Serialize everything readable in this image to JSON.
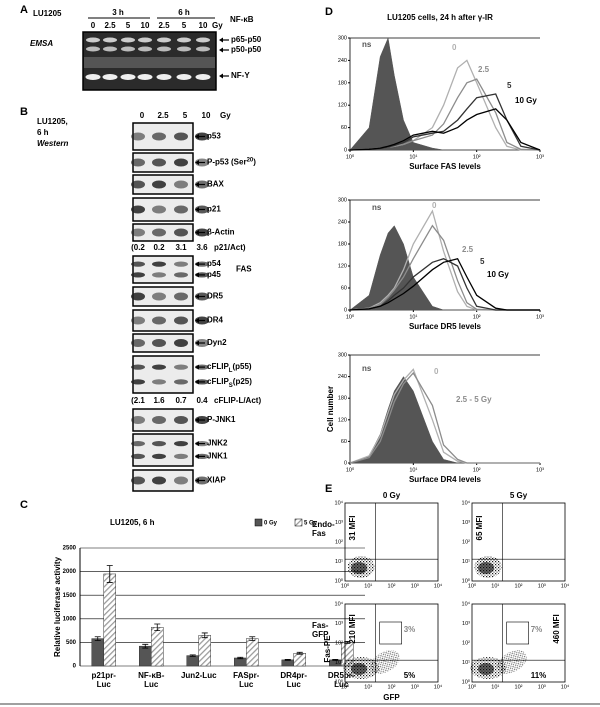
{
  "panel_a": {
    "label": "A",
    "cell_line": "LU1205",
    "times": [
      "3 h",
      "6 h"
    ],
    "doses": [
      "0",
      "2.5",
      "5",
      "10",
      "2.5",
      "5",
      "10"
    ],
    "dose_unit": "Gy",
    "assay": "EMSA",
    "band_header": "NF-κB",
    "bands": [
      "p65-p50",
      "p50-p50",
      "NF-Y"
    ]
  },
  "panel_b": {
    "label": "B",
    "cell_line": "LU1205,",
    "time": "6 h",
    "method": "Western",
    "doses": [
      "0",
      "2.5",
      "5",
      "10"
    ],
    "dose_unit": "Gy",
    "rows": [
      {
        "bands": [
          "p53"
        ]
      },
      {
        "bands": [
          {
            "text": "P-p53 (Ser",
            "sup": "20",
            "rest": ")"
          }
        ]
      },
      {
        "bands": [
          "BAX"
        ]
      },
      {
        "bands": [
          "p21"
        ]
      },
      {
        "bands": [
          "β-Actin"
        ]
      },
      {
        "ratios": [
          "(0.2",
          "0.2",
          "3.1",
          "3.6"
        ],
        "unit": "p21/Act)"
      },
      {
        "bands": [
          "p54",
          "p45"
        ],
        "group": "FAS"
      },
      {
        "bands": [
          "DR5"
        ]
      },
      {
        "bands": [
          "DR4"
        ]
      },
      {
        "bands": [
          "Dyn2"
        ]
      },
      {
        "bands": [
          {
            "text": "cFLIP",
            "sub": "L",
            "rest": "(p55)"
          },
          {
            "text": "cFLIP",
            "sub": "S",
            "rest": "(p25)"
          }
        ]
      },
      {
        "ratios": [
          "(2.1",
          "1.6",
          "0.7",
          "0.4"
        ],
        "unit": "cFLIP-L/Act)"
      },
      {
        "bands": [
          "P-JNK1"
        ]
      },
      {
        "bands": [
          "JNK2",
          "JNK1"
        ]
      },
      {
        "bands": [
          "XIAP"
        ]
      }
    ]
  },
  "chart_data": [
    {
      "type": "bar",
      "panel_label": "C",
      "title": "LU1205, 6 h",
      "ylabel": "Relative luciferase activity",
      "categories": [
        "p21pr-\nLuc",
        "NF-κB-\nLuc",
        "Jun2-Luc",
        "FASpr-\nLuc",
        "DR4pr-\nLuc",
        "DR5pr-\nLuc"
      ],
      "series": [
        {
          "name": "0 Gy",
          "color": "#555555",
          "values": [
            580,
            420,
            220,
            170,
            130,
            130
          ],
          "errors": [
            40,
            40,
            15,
            15,
            10,
            10
          ]
        },
        {
          "name": "5 Gy",
          "color": "#999999",
          "hatch": true,
          "values": [
            1950,
            820,
            650,
            580,
            270,
            500
          ],
          "errors": [
            180,
            70,
            50,
            40,
            20,
            20
          ]
        }
      ],
      "ylim": [
        0,
        2500
      ],
      "yticks": [
        0,
        500,
        1000,
        1500,
        2000,
        2500
      ],
      "grid": true
    },
    {
      "type": "line",
      "panel_label": "D",
      "title": "LU1205 cells, 24 h after γ-IR",
      "xlabel": "Surface FAS levels",
      "log_x": true,
      "x": [
        1,
        2,
        3,
        4,
        5,
        7,
        10,
        20,
        30,
        50,
        70,
        100,
        200,
        300,
        500,
        1000
      ],
      "xlim": [
        1,
        1000
      ],
      "xticks": [
        {
          "value": 1,
          "label": "10⁰"
        },
        {
          "value": 10,
          "label": "10¹"
        },
        {
          "value": 100,
          "label": "10²"
        },
        {
          "value": 1000,
          "label": "10³"
        }
      ],
      "ylim": [
        0,
        300
      ],
      "yticks": [
        0,
        60,
        120,
        180,
        240,
        300
      ],
      "series": [
        {
          "name": "ns",
          "color": "#555555",
          "filled": true,
          "values": [
            0,
            60,
            250,
            300,
            200,
            80,
            20,
            5,
            0,
            0,
            0,
            0,
            0,
            0,
            0,
            0
          ]
        },
        {
          "name": "0",
          "color": "#b0b0b0",
          "values": [
            0,
            2,
            5,
            8,
            10,
            15,
            25,
            60,
            120,
            220,
            240,
            180,
            60,
            10,
            0,
            0
          ]
        },
        {
          "name": "2.5",
          "color": "#8c8c8c",
          "values": [
            0,
            2,
            5,
            8,
            10,
            15,
            25,
            40,
            70,
            140,
            180,
            190,
            100,
            20,
            2,
            0
          ]
        },
        {
          "name": "5",
          "color": "#333333",
          "values": [
            0,
            2,
            4,
            8,
            12,
            20,
            35,
            45,
            50,
            80,
            110,
            140,
            150,
            80,
            10,
            0
          ]
        },
        {
          "name": "10 Gy",
          "color": "#000000",
          "values": [
            0,
            2,
            5,
            10,
            15,
            25,
            40,
            50,
            45,
            60,
            80,
            95,
            110,
            80,
            20,
            0
          ]
        }
      ]
    },
    {
      "type": "line",
      "xlabel": "Surface DR5 levels",
      "log_x": true,
      "x": [
        1,
        2,
        3,
        4,
        5,
        7,
        10,
        20,
        30,
        50,
        70,
        100,
        200,
        300,
        500,
        1000
      ],
      "xlim": [
        1,
        1000
      ],
      "xticks": [
        {
          "value": 1,
          "label": "10⁰"
        },
        {
          "value": 10,
          "label": "10¹"
        },
        {
          "value": 100,
          "label": "10²"
        },
        {
          "value": 1000,
          "label": "10³"
        }
      ],
      "ylim": [
        0,
        300
      ],
      "yticks": [
        0,
        60,
        120,
        180,
        240,
        300
      ],
      "series": [
        {
          "name": "ns",
          "color": "#555555",
          "filled": true,
          "values": [
            0,
            40,
            150,
            210,
            230,
            180,
            90,
            10,
            0,
            0,
            0,
            0,
            0,
            0,
            0,
            0
          ]
        },
        {
          "name": "0",
          "color": "#b0b0b0",
          "values": [
            0,
            5,
            20,
            40,
            60,
            110,
            180,
            270,
            160,
            50,
            10,
            0,
            0,
            0,
            0,
            0
          ]
        },
        {
          "name": "2.5",
          "color": "#8c8c8c",
          "values": [
            0,
            5,
            15,
            35,
            55,
            90,
            140,
            230,
            190,
            80,
            20,
            2,
            0,
            0,
            0,
            0
          ]
        },
        {
          "name": "5",
          "color": "#333333",
          "values": [
            0,
            3,
            10,
            25,
            40,
            60,
            90,
            130,
            140,
            120,
            60,
            10,
            0,
            0,
            0,
            0
          ]
        },
        {
          "name": "10 Gy",
          "color": "#000000",
          "values": [
            0,
            3,
            10,
            20,
            30,
            45,
            65,
            110,
            130,
            140,
            90,
            40,
            5,
            0,
            0,
            0
          ]
        }
      ]
    },
    {
      "type": "line",
      "xlabel": "Surface DR4 levels",
      "ylabel": "Cell number",
      "log_x": true,
      "x": [
        1,
        2,
        3,
        4,
        5,
        7,
        10,
        20,
        30,
        50,
        70,
        100,
        200,
        300,
        500,
        1000
      ],
      "xlim": [
        1,
        1000
      ],
      "xticks": [
        {
          "value": 1,
          "label": "10⁰"
        },
        {
          "value": 10,
          "label": "10¹"
        },
        {
          "value": 100,
          "label": "10²"
        },
        {
          "value": 1000,
          "label": "10³"
        }
      ],
      "ylim": [
        0,
        300
      ],
      "yticks": [
        0,
        60,
        120,
        180,
        240,
        300
      ],
      "series": [
        {
          "name": "ns",
          "color": "#555555",
          "filled": true,
          "values": [
            0,
            20,
            80,
            150,
            200,
            240,
            200,
            60,
            10,
            0,
            0,
            0,
            0,
            0,
            0,
            0
          ]
        },
        {
          "name": "0",
          "color": "#b0b0b0",
          "values": [
            0,
            20,
            75,
            140,
            190,
            230,
            260,
            120,
            30,
            5,
            0,
            0,
            0,
            0,
            0,
            0
          ]
        },
        {
          "name": "2.5 - 5 Gy",
          "color": "#8c8c8c",
          "values": [
            0,
            15,
            60,
            120,
            170,
            220,
            250,
            160,
            50,
            10,
            0,
            0,
            0,
            0,
            0,
            0
          ]
        }
      ]
    }
  ],
  "panel_e": {
    "label": "E",
    "columns": [
      "0 Gy",
      "5 Gy"
    ],
    "rows": [
      "Endo-\nFas",
      "Fas-\nGFP"
    ],
    "ticks": [
      "10⁰",
      "10¹",
      "10²",
      "10³",
      "10⁴"
    ],
    "ylabel": "Fas-PE",
    "xlabel": "GFP",
    "mfi": [
      [
        "31 MFI",
        "65 MFI"
      ],
      [
        "210 MFI",
        "460 MFI"
      ]
    ],
    "gate_upper": [
      "3%",
      "7%"
    ],
    "gate_lower": [
      "5%",
      "11%"
    ]
  }
}
